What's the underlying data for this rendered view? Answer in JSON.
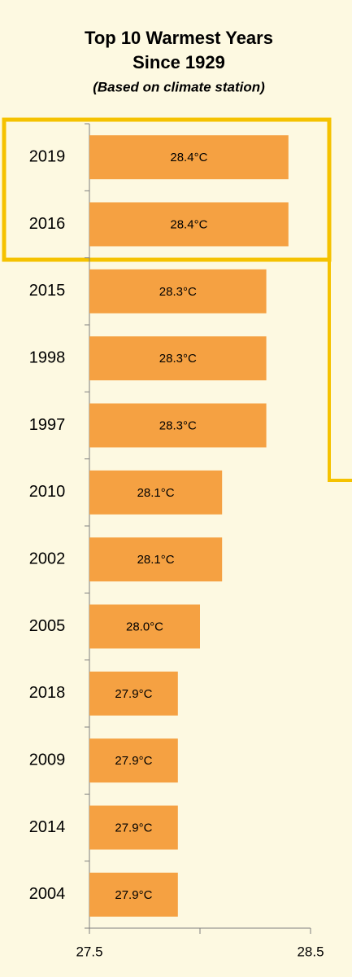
{
  "chart_data": {
    "type": "barh",
    "title": "Top 10 Warmest Years",
    "title_line2": "Since 1929",
    "subtitle": "(Based on climate station)",
    "categories": [
      "2019",
      "2016",
      "2015",
      "1998",
      "1997",
      "2010",
      "2002",
      "2005",
      "2018",
      "2009",
      "2014",
      "2004"
    ],
    "values": [
      28.4,
      28.4,
      28.3,
      28.3,
      28.3,
      28.1,
      28.1,
      28.0,
      27.9,
      27.9,
      27.9,
      27.9
    ],
    "value_labels": [
      "28.4°C",
      "28.4°C",
      "28.3°C",
      "28.3°C",
      "28.3°C",
      "28.1°C",
      "28.1°C",
      "28.0°C",
      "27.9°C",
      "27.9°C",
      "27.9°C",
      "27.9°C"
    ],
    "color": "#f5a142",
    "xlim": [
      27.5,
      28.5
    ],
    "xticks": [
      27.5,
      {
        "value": 28,
        "label": null
      },
      28.5
    ],
    "grid": false
  }
}
